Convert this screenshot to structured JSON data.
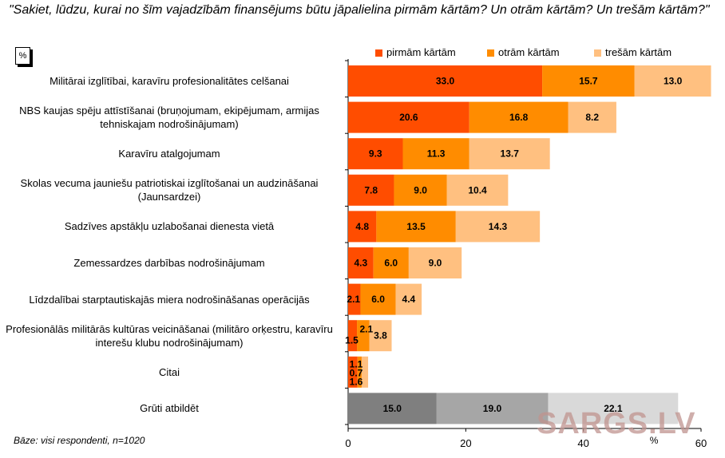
{
  "title": "\"Sakiet, lūdzu, kurai no šīm vajadzībām finansējums būtu jāpalielina pirmām kārtām? Un otrām kārtām? Un trešām kārtām?\"",
  "unit_box": "%",
  "footer": "Bāze: visi respondenti, n=1020",
  "watermark": "SARGS.LV",
  "colors": {
    "first": "#ff4d00",
    "second": "#ff8c00",
    "third": "#ffc080",
    "neutral_first": "#7f7f7f",
    "neutral_second": "#a6a6a6",
    "neutral_third": "#d9d9d9"
  },
  "chart_data": {
    "type": "bar",
    "orientation": "horizontal",
    "stacked": true,
    "xlabel": "%",
    "xlim": [
      0,
      60
    ],
    "xticks": [
      "0",
      "20",
      "40",
      "60"
    ],
    "legend_position": "top-right",
    "categories": [
      "Militārai izglītībai, karavīru profesionalitātes celšanai",
      "NBS kaujas spēju attīstīšanai (bruņojumam, ekipējumam, armijas tehniskajam nodrošinājumam)",
      "Karavīru atalgojumam",
      "Skolas vecuma jauniešu patriotiskai izglītošanai un audzināšanai (Jaunsardzei)",
      "Sadzīves apstākļu uzlabošanai dienesta vietā",
      "Zemessardzes darbības nodrošinājumam",
      "Līdzdalībai starptautiskajās miera nodrošināšanas operācijās",
      "Profesionālās militārās kultūras veicināšanai (militāro orķestru, karavīru interešu klubu nodrošinājumam)",
      "Citai",
      "Grūti atbildēt"
    ],
    "series": [
      {
        "name": "pirmām kārtām",
        "values": [
          33.0,
          20.6,
          9.3,
          7.8,
          4.8,
          4.3,
          2.1,
          1.5,
          1.6,
          15.0
        ]
      },
      {
        "name": "otrām kārtām",
        "values": [
          15.7,
          16.8,
          11.3,
          9.0,
          13.5,
          6.0,
          6.0,
          2.1,
          0.7,
          19.0
        ]
      },
      {
        "name": "trešām kārtām",
        "values": [
          13.0,
          8.2,
          13.7,
          10.4,
          14.3,
          9.0,
          4.4,
          3.8,
          1.1,
          22.1
        ]
      }
    ],
    "data_labels": [
      [
        "33.0",
        "15.7",
        "13.0"
      ],
      [
        "20.6",
        "16.8",
        "8.2"
      ],
      [
        "9.3",
        "11.3",
        "13.7"
      ],
      [
        "7.8",
        "9.0",
        "10.4"
      ],
      [
        "4.8",
        "13.5",
        "14.3"
      ],
      [
        "4.3",
        "6.0",
        "9.0"
      ],
      [
        "2.1",
        "6.0",
        "4.4"
      ],
      [
        "1.5",
        "2.1",
        "3.8"
      ],
      [
        "1.6",
        "0.7",
        "1.1"
      ],
      [
        "15.0",
        "19.0",
        "22.1"
      ]
    ],
    "neutral_category_index": 9
  }
}
